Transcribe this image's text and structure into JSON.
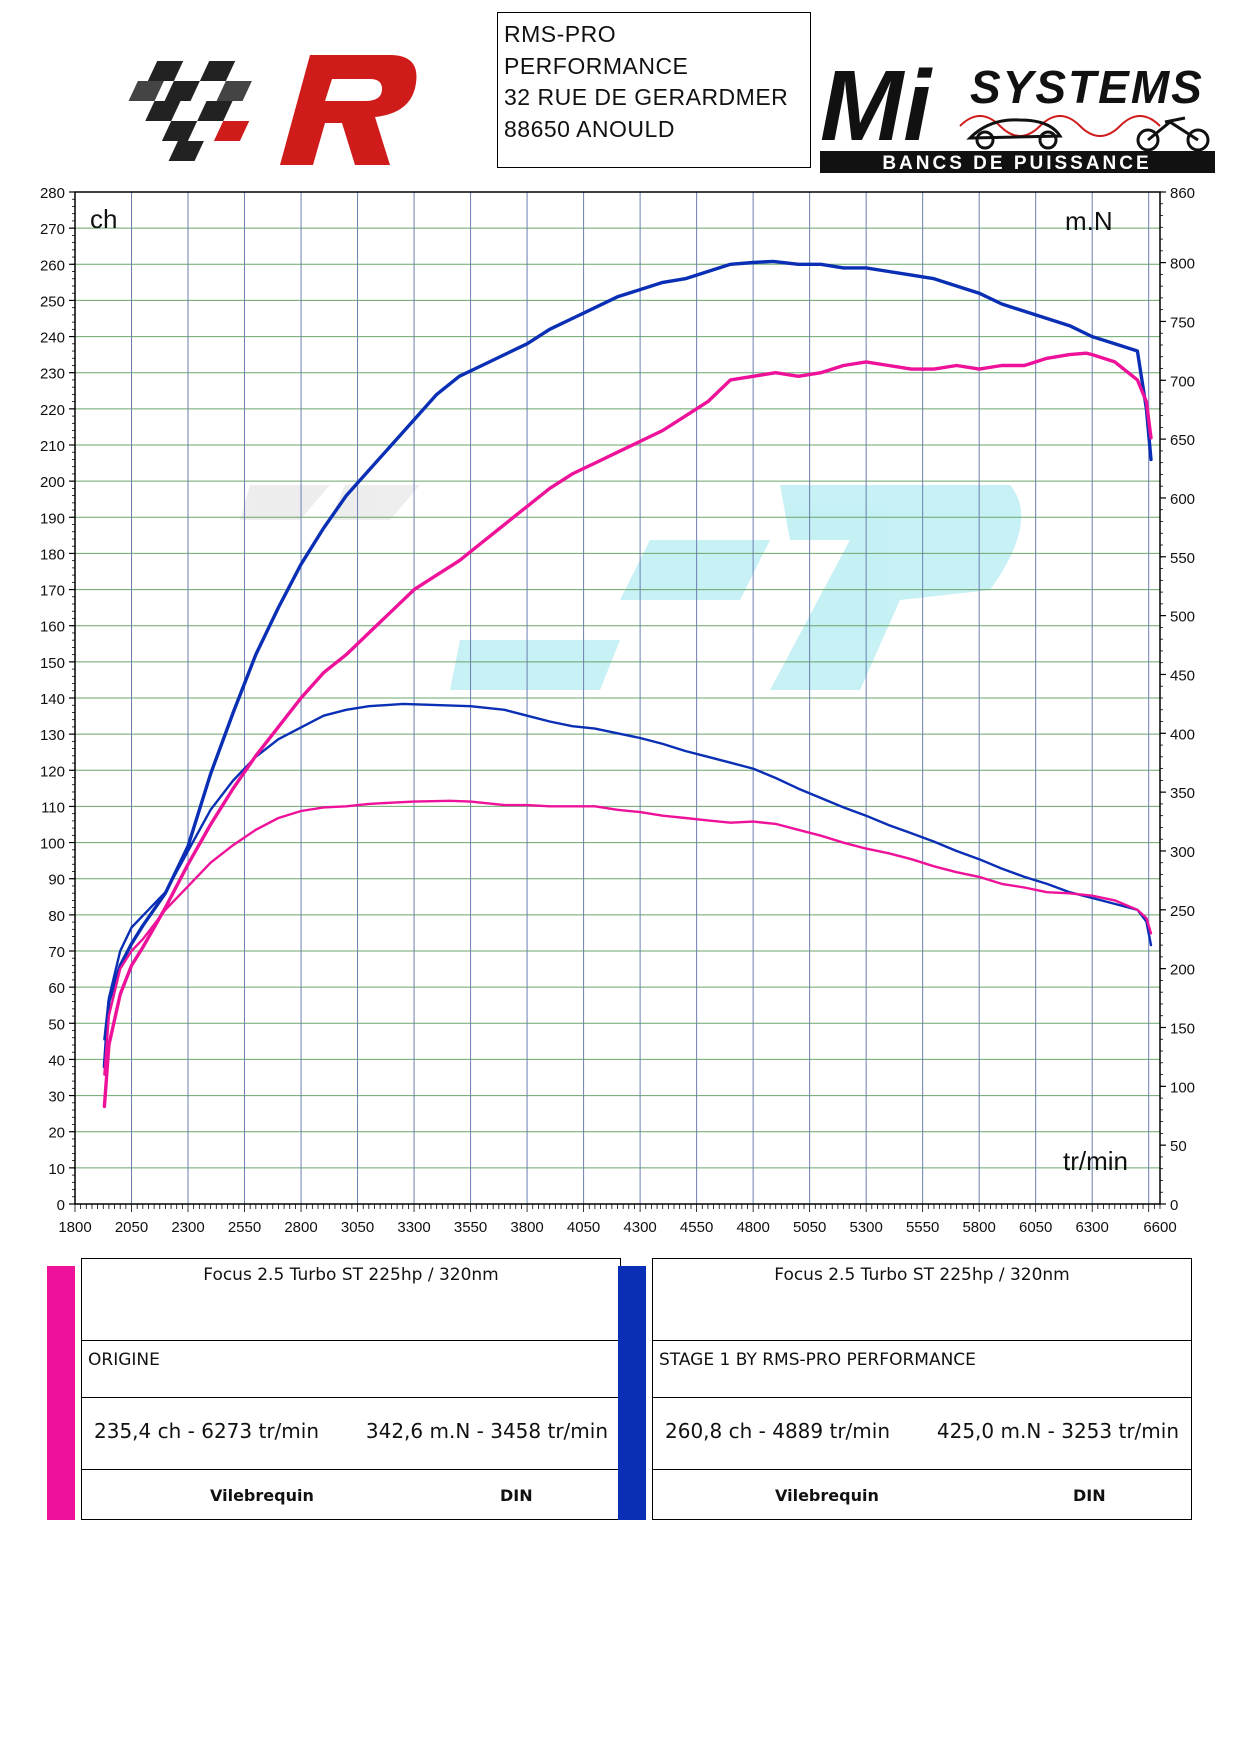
{
  "header": {
    "address_lines": [
      "RMS-PRO",
      "PERFORMANCE",
      "32 RUE DE GERARDMER",
      "88650 ANOULD"
    ],
    "logo_right_top": "SYSTEMS",
    "logo_right_bottom": "BANCS DE PUISSANCE",
    "logo_right_letters": "Mi"
  },
  "colors": {
    "origine": "#ee1199",
    "stage1": "#0a2fb5",
    "grid": "#6aa56a",
    "grid_v": "#6b7fb0"
  },
  "chart_data": {
    "type": "line",
    "left_axis_label": "ch",
    "right_axis_label": "m.N",
    "x_axis_label": "tr/min",
    "xlim": [
      1800,
      6600
    ],
    "ylim_left": [
      0,
      280
    ],
    "ylim_right": [
      0,
      860
    ],
    "x_ticks": [
      1800,
      2050,
      2300,
      2550,
      2800,
      3050,
      3300,
      3550,
      3800,
      4050,
      4300,
      4550,
      4800,
      5050,
      5300,
      5550,
      5800,
      6050,
      6300,
      6600
    ],
    "y_ticks_left": [
      0,
      10,
      20,
      30,
      40,
      50,
      60,
      70,
      80,
      90,
      100,
      110,
      120,
      130,
      140,
      150,
      160,
      170,
      180,
      190,
      200,
      210,
      220,
      230,
      240,
      250,
      260,
      270,
      280
    ],
    "y_ticks_right": [
      0,
      50,
      100,
      150,
      200,
      250,
      300,
      350,
      400,
      450,
      500,
      550,
      600,
      650,
      700,
      750,
      800,
      860
    ],
    "series": [
      {
        "name": "STAGE 1 BY RMS-PRO PERFORMANCE",
        "quantity": "power",
        "axis": "left",
        "color": "#0a2fb5",
        "x": [
          1930,
          1950,
          2000,
          2050,
          2100,
          2200,
          2300,
          2400,
          2500,
          2600,
          2700,
          2800,
          2900,
          3000,
          3100,
          3200,
          3300,
          3400,
          3500,
          3600,
          3700,
          3800,
          3900,
          4000,
          4100,
          4200,
          4300,
          4400,
          4500,
          4600,
          4700,
          4800,
          4889,
          5000,
          5100,
          5200,
          5300,
          5400,
          5500,
          5600,
          5700,
          5800,
          5900,
          6000,
          6100,
          6200,
          6300,
          6400,
          6500,
          6540,
          6560
        ],
        "y": [
          38,
          56,
          66,
          72,
          77,
          86,
          99,
          119,
          136,
          152,
          165,
          177,
          187,
          196,
          203,
          210,
          217,
          224,
          229,
          232,
          235,
          238,
          242,
          245,
          248,
          251,
          253,
          255,
          256,
          258,
          260,
          260.5,
          260.8,
          260,
          260,
          259,
          259,
          258,
          257,
          256,
          254,
          252,
          249,
          247,
          245,
          243,
          240,
          238,
          236,
          220,
          206
        ]
      },
      {
        "name": "STAGE 1 torque",
        "quantity": "torque",
        "axis": "right",
        "color": "#0a2fb5",
        "x": [
          1930,
          1950,
          2000,
          2050,
          2100,
          2200,
          2300,
          2400,
          2500,
          2600,
          2700,
          2800,
          2900,
          3000,
          3100,
          3253,
          3400,
          3550,
          3700,
          3800,
          3900,
          4000,
          4100,
          4200,
          4300,
          4400,
          4500,
          4600,
          4700,
          4800,
          4900,
          5000,
          5100,
          5200,
          5300,
          5400,
          5500,
          5600,
          5700,
          5800,
          5900,
          6000,
          6100,
          6200,
          6300,
          6400,
          6500,
          6540,
          6560
        ],
        "y": [
          140,
          175,
          215,
          235,
          245,
          265,
          300,
          335,
          360,
          380,
          395,
          405,
          415,
          420,
          423,
          425,
          424,
          423,
          420,
          415,
          410,
          406,
          404,
          400,
          396,
          391,
          385,
          380,
          375,
          370,
          362,
          353,
          345,
          337,
          330,
          322,
          315,
          308,
          300,
          293,
          285,
          278,
          272,
          265,
          260,
          255,
          250,
          240,
          220
        ]
      },
      {
        "name": "ORIGINE",
        "quantity": "power",
        "axis": "left",
        "color": "#ee1199",
        "x": [
          1930,
          1950,
          2000,
          2050,
          2100,
          2200,
          2300,
          2400,
          2500,
          2600,
          2700,
          2800,
          2900,
          3000,
          3100,
          3200,
          3300,
          3400,
          3500,
          3600,
          3700,
          3800,
          3900,
          4000,
          4100,
          4200,
          4300,
          4400,
          4500,
          4600,
          4700,
          4800,
          4900,
          5000,
          5100,
          5200,
          5300,
          5400,
          5500,
          5600,
          5700,
          5800,
          5900,
          6000,
          6100,
          6200,
          6273,
          6300,
          6400,
          6500,
          6540,
          6560
        ],
        "y": [
          27,
          44,
          58,
          66,
          71,
          82,
          94,
          105,
          115,
          124,
          132,
          140,
          147,
          152,
          158,
          164,
          170,
          174,
          178,
          183,
          188,
          193,
          198,
          202,
          205,
          208,
          211,
          214,
          218,
          222,
          228,
          229,
          230,
          229,
          230,
          232,
          233,
          232,
          231,
          231,
          232,
          231,
          232,
          232,
          234,
          235,
          235.4,
          235,
          233,
          228,
          222,
          212
        ]
      },
      {
        "name": "ORIGINE torque",
        "quantity": "torque",
        "axis": "right",
        "color": "#ee1199",
        "x": [
          1930,
          1950,
          2000,
          2050,
          2100,
          2200,
          2300,
          2400,
          2500,
          2600,
          2700,
          2800,
          2900,
          3000,
          3100,
          3200,
          3300,
          3458,
          3550,
          3700,
          3800,
          3900,
          4000,
          4100,
          4200,
          4300,
          4400,
          4500,
          4600,
          4700,
          4800,
          4900,
          5000,
          5100,
          5200,
          5300,
          5400,
          5500,
          5600,
          5700,
          5800,
          5900,
          6000,
          6100,
          6200,
          6300,
          6400,
          6500,
          6540,
          6560
        ],
        "y": [
          110,
          160,
          200,
          215,
          225,
          250,
          270,
          290,
          305,
          318,
          328,
          334,
          337,
          338,
          340,
          341,
          342,
          342.6,
          342,
          339,
          339,
          338,
          338,
          338,
          335,
          333,
          330,
          328,
          326,
          324,
          325,
          323,
          318,
          313,
          307,
          302,
          298,
          293,
          287,
          282,
          278,
          272,
          269,
          265,
          264,
          262,
          258,
          250,
          243,
          230
        ]
      }
    ]
  },
  "legend": [
    {
      "title": "Focus 2.5 Turbo ST 225hp / 320nm",
      "run": "ORIGINE",
      "power_peak": "235,4 ch - 6273 tr/min",
      "torque_peak": "342,6 m.N - 3458 tr/min",
      "measure": "Vilebrequin",
      "standard": "DIN",
      "color": "#ee1199"
    },
    {
      "title": "Focus 2.5 Turbo ST 225hp / 320nm",
      "run": "STAGE 1 BY RMS-PRO PERFORMANCE",
      "power_peak": "260,8 ch - 4889 tr/min",
      "torque_peak": "425,0 m.N - 3253 tr/min",
      "measure": "Vilebrequin",
      "standard": "DIN",
      "color": "#0a2fb5"
    }
  ]
}
